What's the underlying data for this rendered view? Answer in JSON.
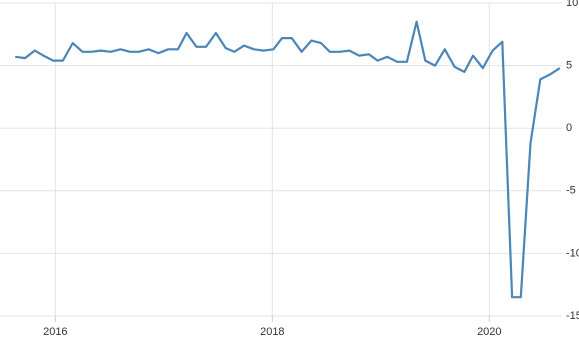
{
  "chart_data": {
    "type": "line",
    "x": [
      2015.63,
      2015.72,
      2015.81,
      2015.89,
      2015.98,
      2016.07,
      2016.16,
      2016.25,
      2016.33,
      2016.42,
      2016.51,
      2016.6,
      2016.69,
      2016.77,
      2016.86,
      2016.95,
      2017.04,
      2017.13,
      2017.21,
      2017.3,
      2017.39,
      2017.48,
      2017.57,
      2017.65,
      2017.74,
      2017.83,
      2017.92,
      2018.01,
      2018.09,
      2018.18,
      2018.27,
      2018.36,
      2018.45,
      2018.53,
      2018.62,
      2018.71,
      2018.8,
      2018.89,
      2018.97,
      2019.06,
      2019.15,
      2019.24,
      2019.33,
      2019.41,
      2019.5,
      2019.59,
      2019.68,
      2019.77,
      2019.85,
      2019.94,
      2020.03,
      2020.12,
      2020.21,
      2020.29,
      2020.38,
      2020.47,
      2020.56,
      2020.65
    ],
    "series": [
      {
        "color": "#4a86b8",
        "values": [
          5.7,
          5.6,
          6.2,
          5.8,
          5.4,
          5.4,
          6.8,
          6.1,
          6.1,
          6.2,
          6.1,
          6.3,
          6.1,
          6.1,
          6.3,
          6.0,
          6.3,
          6.3,
          7.6,
          6.5,
          6.5,
          7.6,
          6.4,
          6.1,
          6.6,
          6.3,
          6.2,
          6.3,
          7.2,
          7.2,
          6.1,
          7.0,
          6.8,
          6.1,
          6.1,
          6.2,
          5.8,
          5.9,
          5.4,
          5.7,
          5.3,
          5.3,
          8.5,
          5.4,
          5.0,
          6.3,
          4.9,
          4.5,
          5.8,
          4.8,
          6.2,
          6.9,
          -13.5,
          -13.5,
          -1.2,
          3.9,
          4.3,
          4.8
        ]
      }
    ],
    "xlim": [
      2015.49,
      2020.67
    ],
    "xticks": [
      2016,
      2018,
      2020
    ],
    "ylim": [
      -15,
      10
    ],
    "yticks": [
      10,
      5,
      0,
      -5,
      -10,
      -15
    ],
    "grid": true
  }
}
